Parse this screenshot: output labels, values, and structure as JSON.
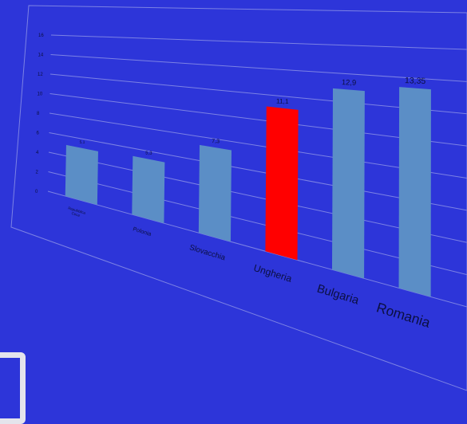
{
  "chart_data": {
    "type": "bar",
    "categories": [
      "Repubblica Ceca",
      "Polonia",
      "Slovacchia",
      "Ungheria",
      "Bulgaria",
      "Romania"
    ],
    "category_display": [
      [
        "Repubblica",
        "Ceca"
      ],
      [
        "Polonia"
      ],
      [
        "Slovacchia"
      ],
      [
        "Ungheria"
      ],
      [
        "Bulgaria"
      ],
      [
        "Romania"
      ]
    ],
    "values": [
      5.1,
      5.3,
      7.3,
      11.1,
      12.9,
      13.35
    ],
    "value_labels": [
      "5,1",
      "5,3",
      "7,3",
      "11,1",
      "12,9",
      "13,35"
    ],
    "ylim": [
      0,
      16
    ],
    "yticks": [
      0,
      2,
      4,
      6,
      8,
      10,
      12,
      14,
      16
    ],
    "grid": true,
    "title": "",
    "xlabel": "",
    "ylabel": "",
    "colors": {
      "background": "#2d35d9",
      "bar": "#5b8ec6",
      "highlight_bar": "#ff0000",
      "grid": "#7c82e4",
      "text": "#0b0f40"
    },
    "highlight_category": "Ungheria"
  }
}
